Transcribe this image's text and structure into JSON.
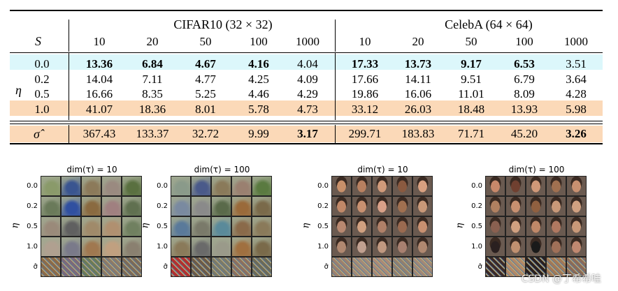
{
  "table": {
    "groups": [
      "CIFAR10 (32 × 32)",
      "CelebA (64 × 64)"
    ],
    "col_header_label": "S",
    "row_group_label": "η",
    "columns": [
      "10",
      "20",
      "50",
      "100",
      "1000",
      "10",
      "20",
      "50",
      "100",
      "1000"
    ],
    "rows": [
      {
        "eta": "0.0",
        "highlight": "#dcf7fb",
        "cells": [
          {
            "v": "13.36",
            "b": true
          },
          {
            "v": "6.84",
            "b": true
          },
          {
            "v": "4.67",
            "b": true
          },
          {
            "v": "4.16",
            "b": true
          },
          {
            "v": "4.04",
            "b": false
          },
          {
            "v": "17.33",
            "b": true
          },
          {
            "v": "13.73",
            "b": true
          },
          {
            "v": "9.17",
            "b": true
          },
          {
            "v": "6.53",
            "b": true
          },
          {
            "v": "3.51",
            "b": false
          }
        ]
      },
      {
        "eta": "0.2",
        "highlight": "",
        "cells": [
          {
            "v": "14.04",
            "b": false
          },
          {
            "v": "7.11",
            "b": false
          },
          {
            "v": "4.77",
            "b": false
          },
          {
            "v": "4.25",
            "b": false
          },
          {
            "v": "4.09",
            "b": false
          },
          {
            "v": "17.66",
            "b": false
          },
          {
            "v": "14.11",
            "b": false
          },
          {
            "v": "9.51",
            "b": false
          },
          {
            "v": "6.79",
            "b": false
          },
          {
            "v": "3.64",
            "b": false
          }
        ]
      },
      {
        "eta": "0.5",
        "highlight": "",
        "cells": [
          {
            "v": "16.66",
            "b": false
          },
          {
            "v": "8.35",
            "b": false
          },
          {
            "v": "5.25",
            "b": false
          },
          {
            "v": "4.46",
            "b": false
          },
          {
            "v": "4.29",
            "b": false
          },
          {
            "v": "19.86",
            "b": false
          },
          {
            "v": "16.06",
            "b": false
          },
          {
            "v": "11.01",
            "b": false
          },
          {
            "v": "8.09",
            "b": false
          },
          {
            "v": "4.28",
            "b": false
          }
        ]
      },
      {
        "eta": "1.0",
        "highlight": "#fbd9b8",
        "cells": [
          {
            "v": "41.07",
            "b": false
          },
          {
            "v": "18.36",
            "b": false
          },
          {
            "v": "8.01",
            "b": false
          },
          {
            "v": "5.78",
            "b": false
          },
          {
            "v": "4.73",
            "b": false
          },
          {
            "v": "33.12",
            "b": false
          },
          {
            "v": "26.03",
            "b": false
          },
          {
            "v": "18.48",
            "b": false
          },
          {
            "v": "13.93",
            "b": false
          },
          {
            "v": "5.98",
            "b": false
          }
        ]
      }
    ],
    "sigma_row": {
      "label": "σ̂",
      "highlight": "#fbd9b8",
      "cells": [
        {
          "v": "367.43",
          "b": false
        },
        {
          "v": "133.37",
          "b": false
        },
        {
          "v": "32.72",
          "b": false
        },
        {
          "v": "9.99",
          "b": false
        },
        {
          "v": "3.17",
          "b": true
        },
        {
          "v": "299.71",
          "b": false
        },
        {
          "v": "183.83",
          "b": false
        },
        {
          "v": "71.71",
          "b": false
        },
        {
          "v": "45.20",
          "b": false
        },
        {
          "v": "3.26",
          "b": true
        }
      ]
    }
  },
  "panels": [
    {
      "title": "dim(τ) = 10",
      "dataset": "cifar"
    },
    {
      "title": "dim(τ) = 100",
      "dataset": "cifar"
    },
    {
      "title": "dim(τ) = 10",
      "dataset": "celeba"
    },
    {
      "title": "dim(τ) = 100",
      "dataset": "celeba"
    }
  ],
  "panel_row_labels": [
    "0.0",
    "0.2",
    "0.5",
    "1.0",
    "σ̂"
  ],
  "panel_axis_label": "η",
  "watermark": "CSDN @丁希希哇"
}
